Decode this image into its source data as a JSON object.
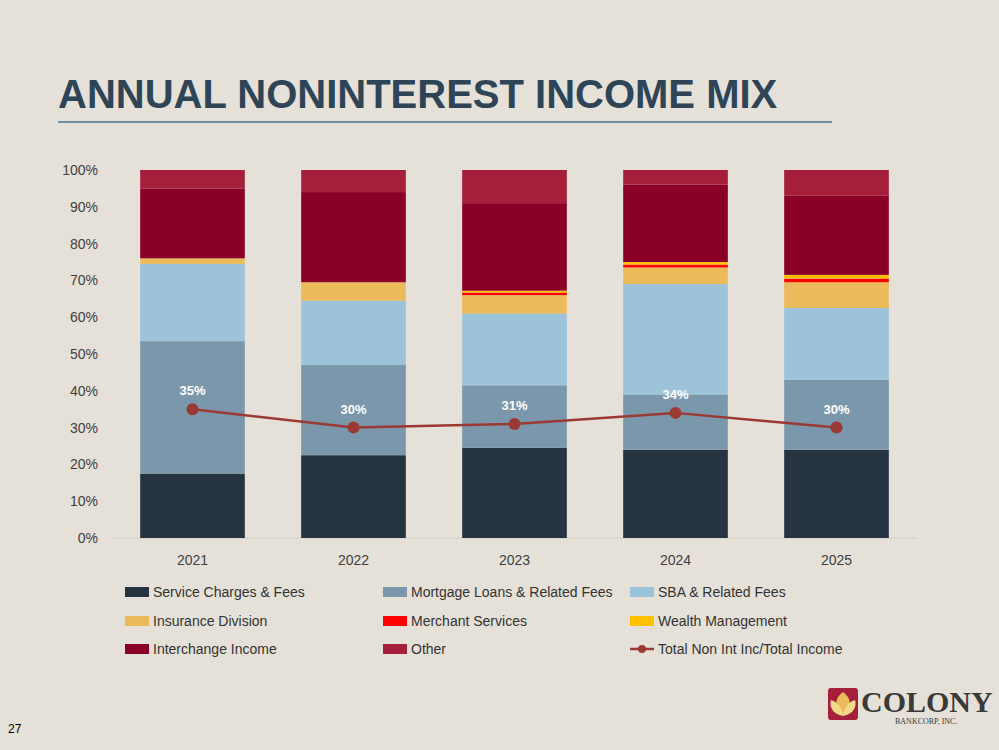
{
  "chart_data": {
    "type": "bar",
    "title": "ANNUAL NONINTEREST INCOME MIX",
    "stacked": true,
    "grid": false,
    "legend": "bottom",
    "categories": [
      "2021",
      "2022",
      "2023",
      "2024",
      "2025"
    ],
    "ylim": [
      0,
      100
    ],
    "yticks": [
      {
        "value": 0,
        "label": "0%"
      },
      {
        "value": 10,
        "label": "10%"
      },
      {
        "value": 20,
        "label": "20%"
      },
      {
        "value": 30,
        "label": "30%"
      },
      {
        "value": 40,
        "label": "40%"
      },
      {
        "value": 50,
        "label": "50%"
      },
      {
        "value": 60,
        "label": "60%"
      },
      {
        "value": 70,
        "label": "70%"
      },
      {
        "value": 80,
        "label": "80%"
      },
      {
        "value": 90,
        "label": "90%"
      },
      {
        "value": 100,
        "label": "100%"
      }
    ],
    "series": [
      {
        "name": "Service Charges & Fees",
        "color": "#263340",
        "values": [
          17.5,
          22.5,
          24.5,
          24,
          24
        ]
      },
      {
        "name": "Mortgage Loans & Related Fees",
        "color": "#7a97ab",
        "values": [
          36,
          24.5,
          17,
          15,
          19
        ]
      },
      {
        "name": "SBA & Related Fees",
        "color": "#9dc3da",
        "values": [
          21,
          17.5,
          19.5,
          30,
          19.5
        ]
      },
      {
        "name": "Insurance Division",
        "color": "#ebbb5b",
        "values": [
          1.5,
          5,
          5,
          4.5,
          7
        ]
      },
      {
        "name": "Merchant Services",
        "color": "#ff0000",
        "values": [
          0,
          0,
          0.7,
          0.8,
          1
        ]
      },
      {
        "name": "Wealth Management",
        "color": "#ffc000",
        "values": [
          0,
          0,
          0.5,
          0.7,
          1
        ]
      },
      {
        "name": "Interchange Income",
        "color": "#8b0027",
        "values": [
          19,
          24.5,
          23.8,
          21,
          21.5
        ]
      },
      {
        "name": "Other",
        "color": "#a51f3c",
        "values": [
          5,
          6,
          9,
          4,
          7
        ]
      },
      {
        "name": "Total Non Int Inc/Total Income",
        "color": "#9b3a33",
        "type": "line",
        "marker": "circle",
        "data_labels": true,
        "values": [
          35,
          30,
          31,
          34,
          30
        ],
        "value_labels": [
          "35%",
          "30%",
          "31%",
          "34%",
          "30%"
        ]
      }
    ]
  },
  "page": {
    "number": "27",
    "logo_name": "COLONY",
    "logo_sub": "BANKCORP, INC."
  }
}
